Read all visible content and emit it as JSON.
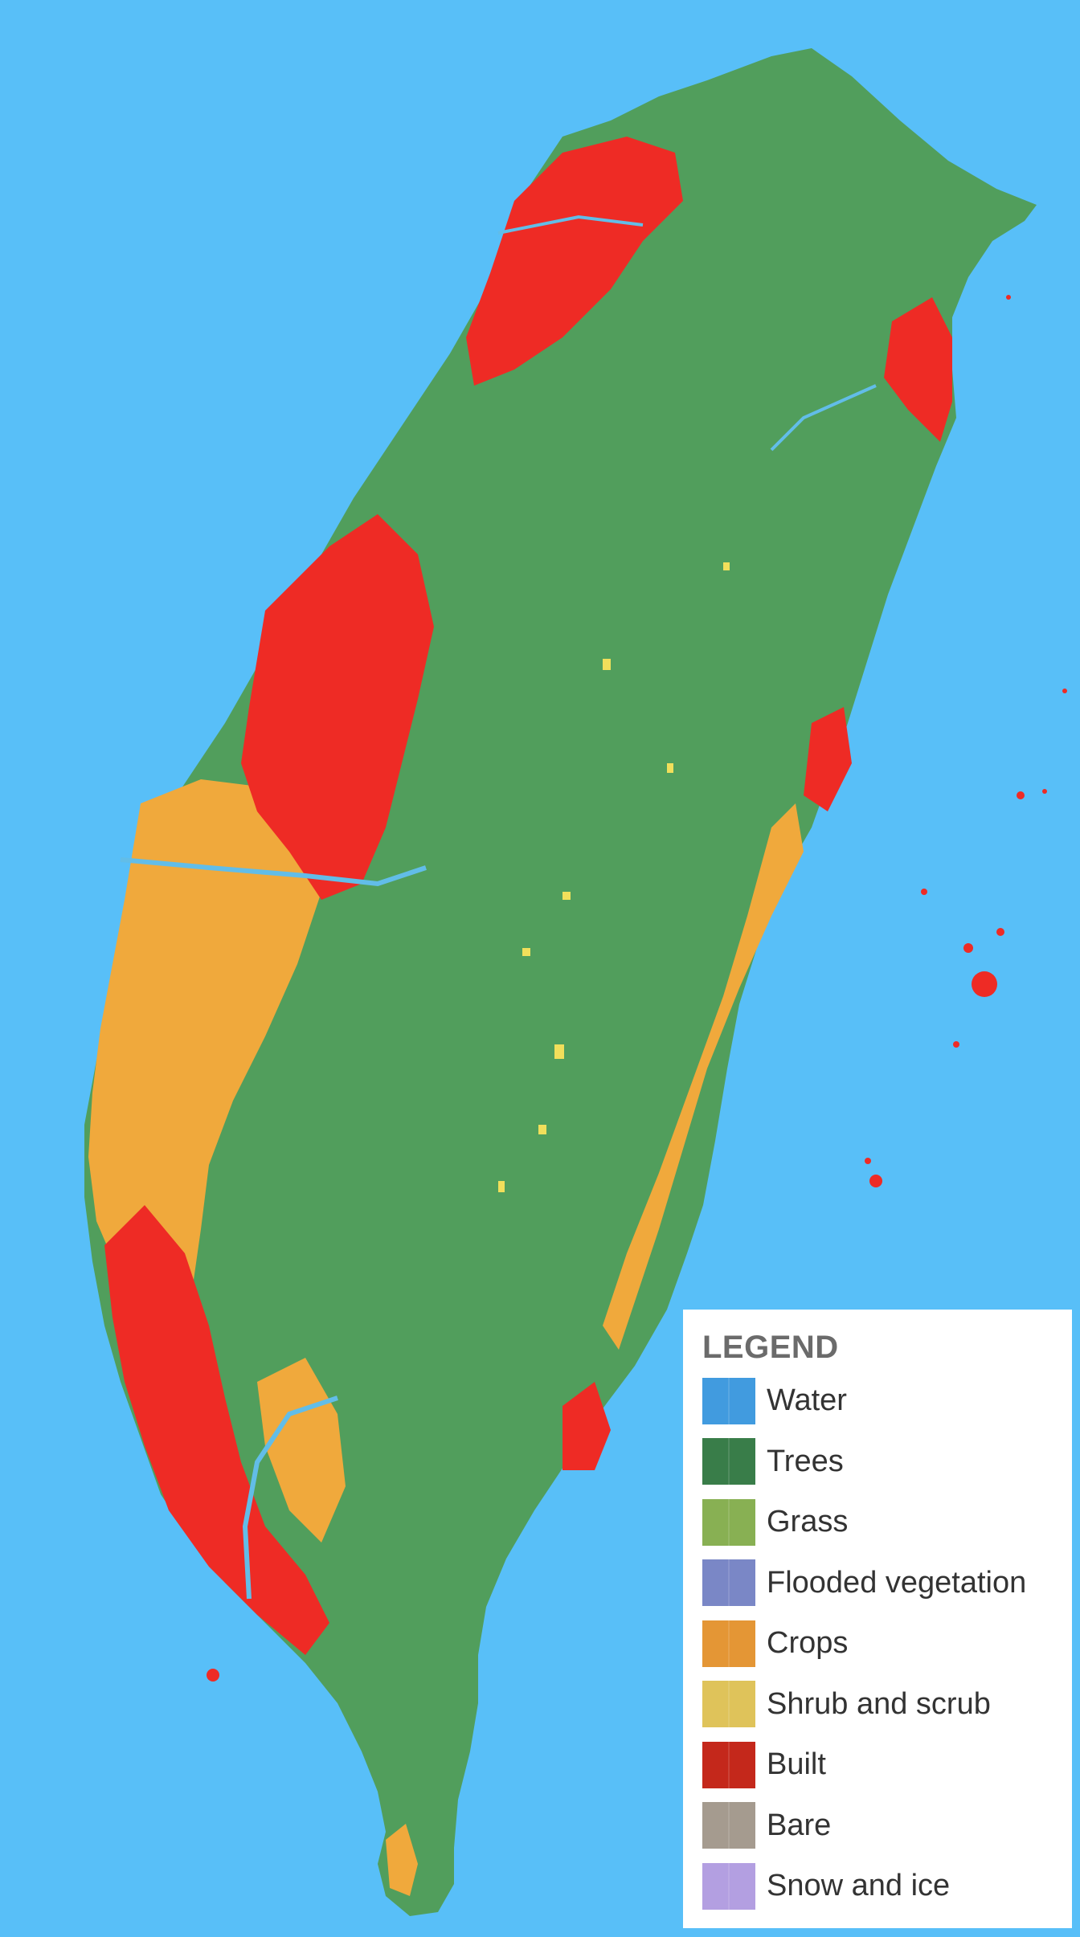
{
  "colors": {
    "ocean": "#58bff8",
    "land_trees": "#519e5c",
    "built": "#ee2b25",
    "crops": "#f0a93c",
    "shrub": "#f1df5b",
    "water_lines": "#62bde8"
  },
  "legend": {
    "title": "LEGEND",
    "items": [
      {
        "label": "Water",
        "color": "#419bdf",
        "icon": "water-swatch"
      },
      {
        "label": "Trees",
        "color": "#397d49",
        "icon": "trees-swatch"
      },
      {
        "label": "Grass",
        "color": "#88b053",
        "icon": "grass-swatch"
      },
      {
        "label": "Flooded vegetation",
        "color": "#7a87c6",
        "icon": "flooded-vegetation-swatch"
      },
      {
        "label": "Crops",
        "color": "#e49635",
        "icon": "crops-swatch"
      },
      {
        "label": "Shrub and scrub",
        "color": "#dfc35a",
        "icon": "shrub-swatch"
      },
      {
        "label": "Built",
        "color": "#c4281b",
        "icon": "built-swatch"
      },
      {
        "label": "Bare",
        "color": "#a59b8f",
        "icon": "bare-swatch"
      },
      {
        "label": "Snow and ice",
        "color": "#b39fe1",
        "icon": "snow-swatch"
      }
    ]
  }
}
